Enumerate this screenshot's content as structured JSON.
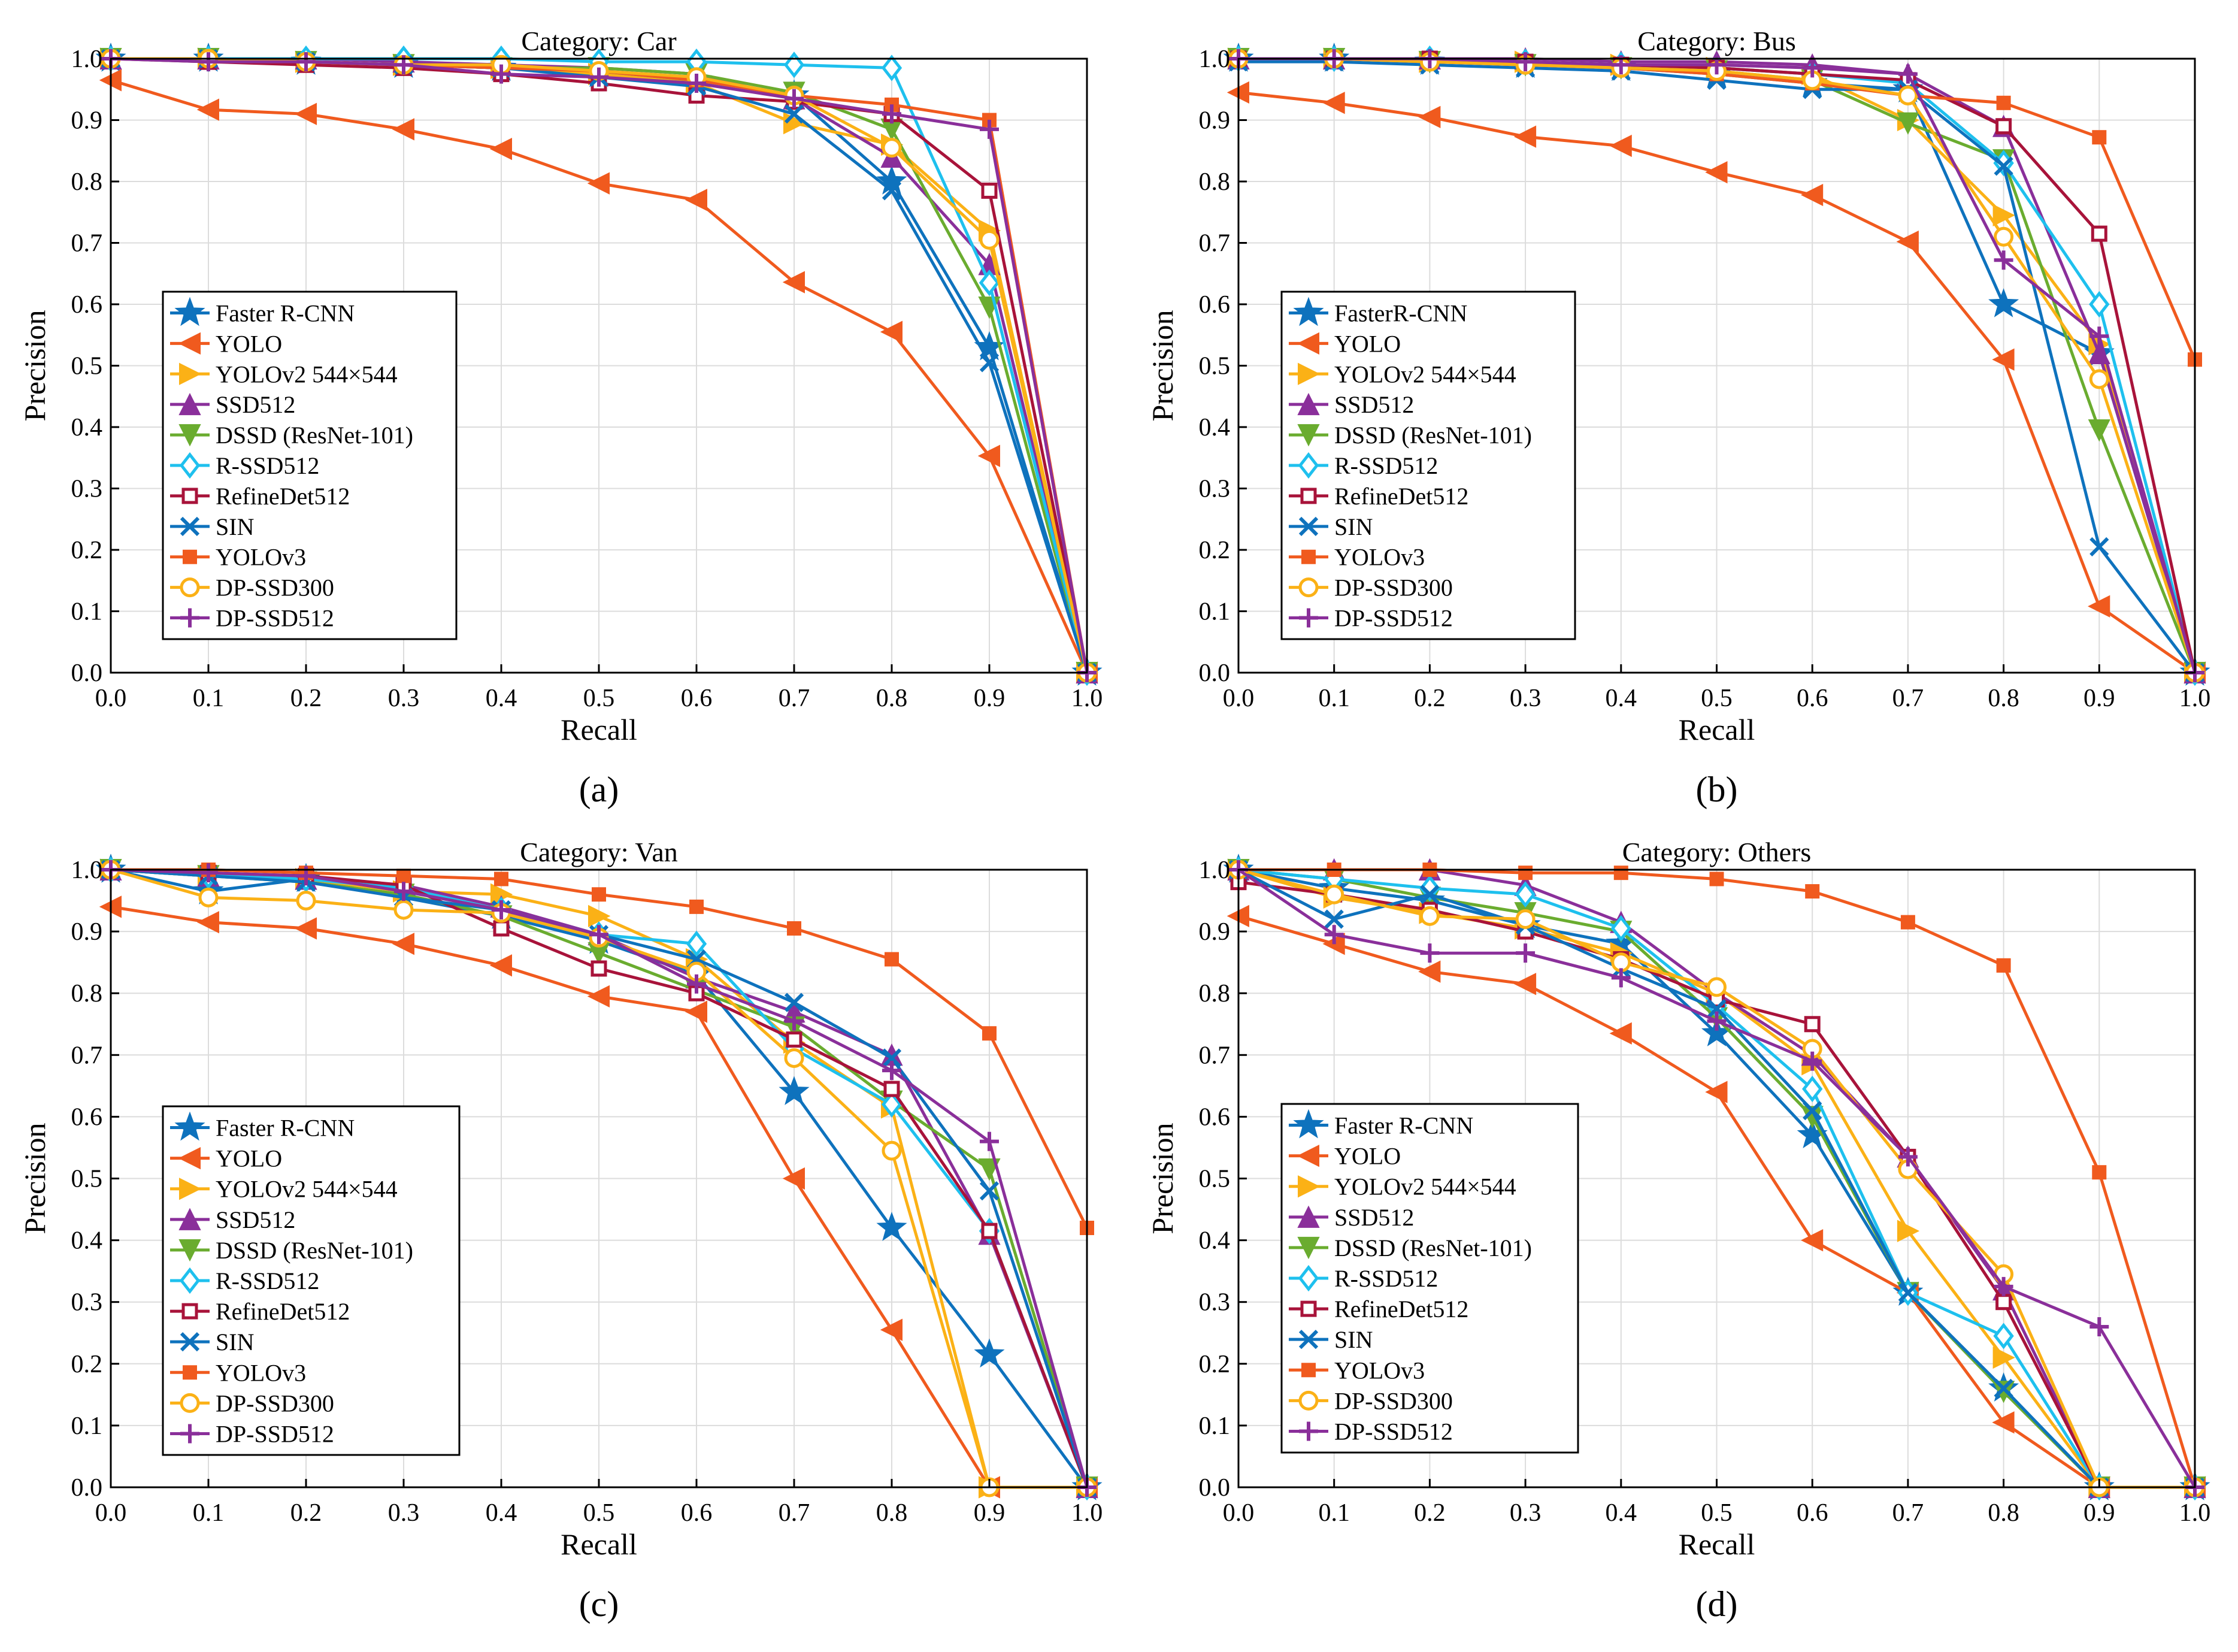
{
  "styles": {
    "Faster R-CNN": {
      "color": "#0e72bd",
      "marker": "star"
    },
    "FasterR-CNN": {
      "color": "#0e72bd",
      "marker": "star"
    },
    "YOLO": {
      "color": "#f05a1e",
      "marker": "triangle-left"
    },
    "YOLOv2 544×544": {
      "color": "#fbb116",
      "marker": "triangle-right"
    },
    "SSD512": {
      "color": "#8a2f9a",
      "marker": "triangle-up"
    },
    "DSSD (ResNet-101)": {
      "color": "#6aac2f",
      "marker": "triangle-down"
    },
    "R-SSD512": {
      "color": "#1ec0ee",
      "marker": "diamond"
    },
    "RefineDet512": {
      "color": "#a8133a",
      "marker": "square"
    },
    "SIN": {
      "color": "#0e72bd",
      "marker": "x"
    },
    "YOLOv3": {
      "color": "#f05a1e",
      "marker": "square-filled"
    },
    "DP-SSD300": {
      "color": "#fbb116",
      "marker": "circle"
    },
    "DP-SSD512": {
      "color": "#8a2f9a",
      "marker": "plus"
    }
  },
  "chart_data": [
    {
      "type": "line",
      "title": "Category: Car",
      "caption": "(a)",
      "xlabel": "Recall",
      "ylabel": "Precision",
      "xlim": [
        0,
        1
      ],
      "ylim": [
        0,
        1
      ],
      "grid": true,
      "legend_position": "center-left",
      "x": [
        0,
        0.1,
        0.2,
        0.3,
        0.4,
        0.5,
        0.6,
        0.7,
        0.8,
        0.9,
        1.0
      ],
      "x_ticks": [
        "0.0",
        "0.1",
        "0.2",
        "0.3",
        "0.4",
        "0.5",
        "0.6",
        "0.7",
        "0.8",
        "0.9",
        "1.0"
      ],
      "y_ticks": [
        "0.0",
        "0.1",
        "0.2",
        "0.3",
        "0.4",
        "0.5",
        "0.6",
        "0.7",
        "0.8",
        "0.9",
        "1.0"
      ],
      "series": [
        {
          "name": "Faster R-CNN",
          "values": [
            1.0,
            1.0,
            0.995,
            0.99,
            0.985,
            0.975,
            0.965,
            0.94,
            0.8,
            0.53,
            0.0
          ]
        },
        {
          "name": "YOLO",
          "values": [
            0.965,
            0.917,
            0.91,
            0.885,
            0.853,
            0.797,
            0.77,
            0.636,
            0.555,
            0.353,
            0.0
          ]
        },
        {
          "name": "YOLOv2 544×544",
          "values": [
            1.0,
            1.0,
            0.995,
            0.99,
            0.985,
            0.975,
            0.96,
            0.895,
            0.86,
            0.72,
            0.0
          ]
        },
        {
          "name": "SSD512",
          "values": [
            1.0,
            1.0,
            1.0,
            0.995,
            0.99,
            0.985,
            0.975,
            0.935,
            0.84,
            0.665,
            0.0
          ]
        },
        {
          "name": "DSSD (ResNet-101)",
          "values": [
            1.0,
            1.0,
            0.995,
            0.99,
            0.985,
            0.985,
            0.975,
            0.945,
            0.885,
            0.595,
            0.0
          ]
        },
        {
          "name": "R-SSD512",
          "values": [
            1.0,
            1.0,
            1.0,
            1.0,
            1.0,
            0.995,
            0.995,
            0.99,
            0.985,
            0.635,
            0.0
          ]
        },
        {
          "name": "RefineDet512",
          "values": [
            1.0,
            0.995,
            0.99,
            0.985,
            0.975,
            0.96,
            0.94,
            0.93,
            0.91,
            0.785,
            0.0
          ]
        },
        {
          "name": "SIN",
          "values": [
            1.0,
            1.0,
            0.995,
            0.99,
            0.985,
            0.97,
            0.955,
            0.91,
            0.785,
            0.505,
            0.0
          ]
        },
        {
          "name": "YOLOv3",
          "values": [
            1.0,
            1.0,
            0.995,
            0.99,
            0.985,
            0.98,
            0.965,
            0.94,
            0.925,
            0.9,
            0.0
          ]
        },
        {
          "name": "DP-SSD300",
          "values": [
            1.0,
            1.0,
            0.995,
            0.99,
            0.99,
            0.98,
            0.97,
            0.94,
            0.855,
            0.705,
            0.0
          ]
        },
        {
          "name": "DP-SSD512",
          "values": [
            1.0,
            0.995,
            0.995,
            0.99,
            0.975,
            0.97,
            0.96,
            0.935,
            0.91,
            0.885,
            0.0
          ]
        }
      ]
    },
    {
      "type": "line",
      "title": "Category: Bus",
      "caption": "(b)",
      "xlabel": "Recall",
      "ylabel": "Precision",
      "xlim": [
        0,
        1
      ],
      "ylim": [
        0,
        1
      ],
      "grid": true,
      "legend_position": "center-left",
      "x": [
        0,
        0.1,
        0.2,
        0.3,
        0.4,
        0.5,
        0.6,
        0.7,
        0.8,
        0.9,
        1.0
      ],
      "x_ticks": [
        "0.0",
        "0.1",
        "0.2",
        "0.3",
        "0.4",
        "0.5",
        "0.6",
        "0.7",
        "0.8",
        "0.9",
        "1.0"
      ],
      "y_ticks": [
        "0.0",
        "0.1",
        "0.2",
        "0.3",
        "0.4",
        "0.5",
        "0.6",
        "0.7",
        "0.8",
        "0.9",
        "1.0"
      ],
      "series": [
        {
          "name": "FasterR-CNN",
          "values": [
            1.0,
            1.0,
            0.995,
            0.99,
            0.985,
            0.975,
            0.96,
            0.95,
            0.6,
            0.52,
            0.0
          ]
        },
        {
          "name": "YOLO",
          "values": [
            0.945,
            0.928,
            0.905,
            0.873,
            0.858,
            0.815,
            0.778,
            0.702,
            0.51,
            0.108,
            0.0
          ]
        },
        {
          "name": "YOLOv2 544×544",
          "values": [
            1.0,
            1.0,
            0.995,
            0.995,
            0.99,
            0.985,
            0.975,
            0.9,
            0.745,
            0.535,
            0.0
          ]
        },
        {
          "name": "SSD512",
          "values": [
            1.0,
            1.0,
            1.0,
            1.0,
            0.995,
            0.995,
            0.99,
            0.975,
            0.89,
            0.52,
            0.0
          ]
        },
        {
          "name": "DSSD (ResNet-101)",
          "values": [
            1.0,
            1.0,
            0.995,
            0.99,
            0.985,
            0.98,
            0.965,
            0.895,
            0.835,
            0.395,
            0.0
          ]
        },
        {
          "name": "R-SSD512",
          "values": [
            1.0,
            1.0,
            1.0,
            0.995,
            0.99,
            0.985,
            0.975,
            0.96,
            0.83,
            0.6,
            0.0
          ]
        },
        {
          "name": "RefineDet512",
          "values": [
            1.0,
            1.0,
            1.0,
            0.995,
            0.99,
            0.985,
            0.975,
            0.965,
            0.89,
            0.715,
            0.0
          ]
        },
        {
          "name": "SIN",
          "values": [
            0.995,
            0.995,
            0.99,
            0.985,
            0.98,
            0.965,
            0.95,
            0.95,
            0.825,
            0.205,
            0.0
          ]
        },
        {
          "name": "YOLOv3",
          "values": [
            1.0,
            1.0,
            0.995,
            0.99,
            0.985,
            0.975,
            0.96,
            0.94,
            0.928,
            0.872,
            0.51
          ]
        },
        {
          "name": "DP-SSD300",
          "values": [
            1.0,
            1.0,
            0.995,
            0.99,
            0.985,
            0.98,
            0.965,
            0.94,
            0.71,
            0.478,
            0.0
          ]
        },
        {
          "name": "DP-SSD512",
          "values": [
            1.0,
            1.0,
            1.0,
            0.995,
            0.99,
            0.99,
            0.985,
            0.975,
            0.672,
            0.548,
            0.0
          ]
        }
      ]
    },
    {
      "type": "line",
      "title": "Category: Van",
      "caption": "(c)",
      "xlabel": "Recall",
      "ylabel": "Precision",
      "xlim": [
        0,
        1
      ],
      "ylim": [
        0,
        1
      ],
      "grid": true,
      "legend_position": "bottom-left",
      "x": [
        0,
        0.1,
        0.2,
        0.3,
        0.4,
        0.5,
        0.6,
        0.7,
        0.8,
        0.9,
        1.0
      ],
      "x_ticks": [
        "0.0",
        "0.1",
        "0.2",
        "0.3",
        "0.4",
        "0.5",
        "0.6",
        "0.7",
        "0.8",
        "0.9",
        "1.0"
      ],
      "y_ticks": [
        "0.0",
        "0.1",
        "0.2",
        "0.3",
        "0.4",
        "0.5",
        "0.6",
        "0.7",
        "0.8",
        "0.9",
        "1.0"
      ],
      "series": [
        {
          "name": "Faster R-CNN",
          "values": [
            1.0,
            0.965,
            0.985,
            0.955,
            0.925,
            0.885,
            0.83,
            0.64,
            0.42,
            0.215,
            0.0
          ]
        },
        {
          "name": "YOLO",
          "values": [
            0.94,
            0.915,
            0.905,
            0.88,
            0.845,
            0.795,
            0.77,
            0.5,
            0.255,
            0.0,
            0.0
          ]
        },
        {
          "name": "YOLOv2 544×544",
          "values": [
            1.0,
            0.99,
            0.985,
            0.965,
            0.96,
            0.925,
            0.855,
            0.72,
            0.615,
            0.0,
            0.0
          ]
        },
        {
          "name": "SSD512",
          "values": [
            1.0,
            0.99,
            0.985,
            0.975,
            0.94,
            0.895,
            0.825,
            0.77,
            0.7,
            0.41,
            0.0
          ]
        },
        {
          "name": "DSSD (ResNet-101)",
          "values": [
            1.0,
            0.99,
            0.98,
            0.96,
            0.925,
            0.865,
            0.805,
            0.745,
            0.625,
            0.515,
            0.0
          ]
        },
        {
          "name": "R-SSD512",
          "values": [
            1.0,
            0.99,
            0.985,
            0.97,
            0.935,
            0.895,
            0.88,
            0.71,
            0.62,
            0.415,
            0.0
          ]
        },
        {
          "name": "RefineDet512",
          "values": [
            1.0,
            0.995,
            0.99,
            0.975,
            0.905,
            0.84,
            0.8,
            0.725,
            0.645,
            0.415,
            0.0
          ]
        },
        {
          "name": "SIN",
          "values": [
            1.0,
            0.99,
            0.98,
            0.955,
            0.935,
            0.895,
            0.855,
            0.785,
            0.695,
            0.48,
            0.0
          ]
        },
        {
          "name": "YOLOv3",
          "values": [
            1.0,
            1.0,
            0.995,
            0.99,
            0.985,
            0.96,
            0.94,
            0.905,
            0.855,
            0.735,
            0.42
          ]
        },
        {
          "name": "DP-SSD300",
          "values": [
            1.0,
            0.955,
            0.95,
            0.935,
            0.93,
            0.89,
            0.835,
            0.695,
            0.545,
            0.0,
            0.0
          ]
        },
        {
          "name": "DP-SSD512",
          "values": [
            1.0,
            0.995,
            0.99,
            0.965,
            0.935,
            0.895,
            0.815,
            0.755,
            0.675,
            0.56,
            0.0
          ]
        }
      ]
    },
    {
      "type": "line",
      "title": "Category: Others",
      "caption": "(d)",
      "xlabel": "Recall",
      "ylabel": "Precision",
      "xlim": [
        0,
        1
      ],
      "ylim": [
        0,
        1
      ],
      "grid": true,
      "legend_position": "bottom-left",
      "x": [
        0,
        0.1,
        0.2,
        0.3,
        0.4,
        0.5,
        0.6,
        0.7,
        0.8,
        0.9,
        1.0
      ],
      "x_ticks": [
        "0.0",
        "0.1",
        "0.2",
        "0.3",
        "0.4",
        "0.5",
        "0.6",
        "0.7",
        "0.8",
        "0.9",
        "1.0"
      ],
      "y_ticks": [
        "0.0",
        "0.1",
        "0.2",
        "0.3",
        "0.4",
        "0.5",
        "0.6",
        "0.7",
        "0.8",
        "0.9",
        "1.0"
      ],
      "series": [
        {
          "name": "Faster R-CNN",
          "values": [
            1.0,
            0.97,
            0.95,
            0.91,
            0.88,
            0.735,
            0.57,
            0.315,
            0.16,
            0.0,
            0.0
          ]
        },
        {
          "name": "YOLO",
          "values": [
            0.925,
            0.88,
            0.835,
            0.815,
            0.735,
            0.64,
            0.4,
            0.315,
            0.105,
            0.0,
            0.0
          ]
        },
        {
          "name": "YOLOv2 544×544",
          "values": [
            1.0,
            0.955,
            0.93,
            0.905,
            0.865,
            0.8,
            0.685,
            0.415,
            0.21,
            0.0,
            0.0
          ]
        },
        {
          "name": "SSD512",
          "values": [
            1.0,
            1.0,
            1.0,
            0.975,
            0.915,
            0.8,
            0.7,
            0.535,
            0.32,
            0.0,
            0.0
          ]
        },
        {
          "name": "DSSD (ResNet-101)",
          "values": [
            1.0,
            0.985,
            0.955,
            0.93,
            0.9,
            0.76,
            0.6,
            0.315,
            0.155,
            0.0,
            0.0
          ]
        },
        {
          "name": "R-SSD512",
          "values": [
            1.0,
            0.985,
            0.97,
            0.96,
            0.905,
            0.78,
            0.645,
            0.315,
            0.245,
            0.0,
            0.0
          ]
        },
        {
          "name": "RefineDet512",
          "values": [
            0.98,
            0.96,
            0.935,
            0.9,
            0.855,
            0.79,
            0.75,
            0.535,
            0.3,
            0.0,
            0.0
          ]
        },
        {
          "name": "SIN",
          "values": [
            1.0,
            0.92,
            0.96,
            0.91,
            0.84,
            0.775,
            0.61,
            0.315,
            0.16,
            0.0,
            0.0
          ]
        },
        {
          "name": "YOLOv3",
          "values": [
            1.0,
            1.0,
            1.0,
            0.995,
            0.995,
            0.985,
            0.965,
            0.915,
            0.845,
            0.51,
            0.0
          ]
        },
        {
          "name": "DP-SSD300",
          "values": [
            1.0,
            0.96,
            0.925,
            0.92,
            0.85,
            0.81,
            0.71,
            0.515,
            0.345,
            0.0,
            0.0
          ]
        },
        {
          "name": "DP-SSD512",
          "values": [
            1.0,
            0.895,
            0.865,
            0.865,
            0.825,
            0.755,
            0.69,
            0.535,
            0.325,
            0.26,
            0.0
          ]
        }
      ]
    }
  ]
}
